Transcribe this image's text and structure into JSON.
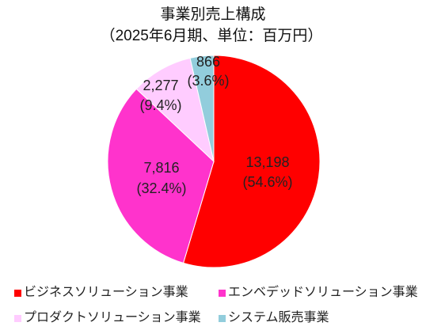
{
  "chart_data": {
    "type": "pie",
    "title": "事業別売上構成",
    "subtitle": "（2025年6月期、単位：百万円）",
    "legend_position": "bottom",
    "slices": [
      {
        "label": "ビジネスソリューション事業",
        "value": 13198,
        "value_label": "13,198",
        "percent": 54.6,
        "percent_label": "(54.6%)",
        "color": "#FF0000"
      },
      {
        "label": "エンベデッドソリューション事業",
        "value": 7816,
        "value_label": "7,816",
        "percent": 32.4,
        "percent_label": "(32.4%)",
        "color": "#FF33CC"
      },
      {
        "label": "プロダクトソリューション事業",
        "value": 2277,
        "value_label": "2,277",
        "percent": 9.4,
        "percent_label": "(9.4%)",
        "color": "#FFCCFF"
      },
      {
        "label": "システム販売事業",
        "value": 866,
        "value_label": "866",
        "percent": 3.6,
        "percent_label": "(3.6%)",
        "color": "#92CDDC"
      }
    ]
  }
}
